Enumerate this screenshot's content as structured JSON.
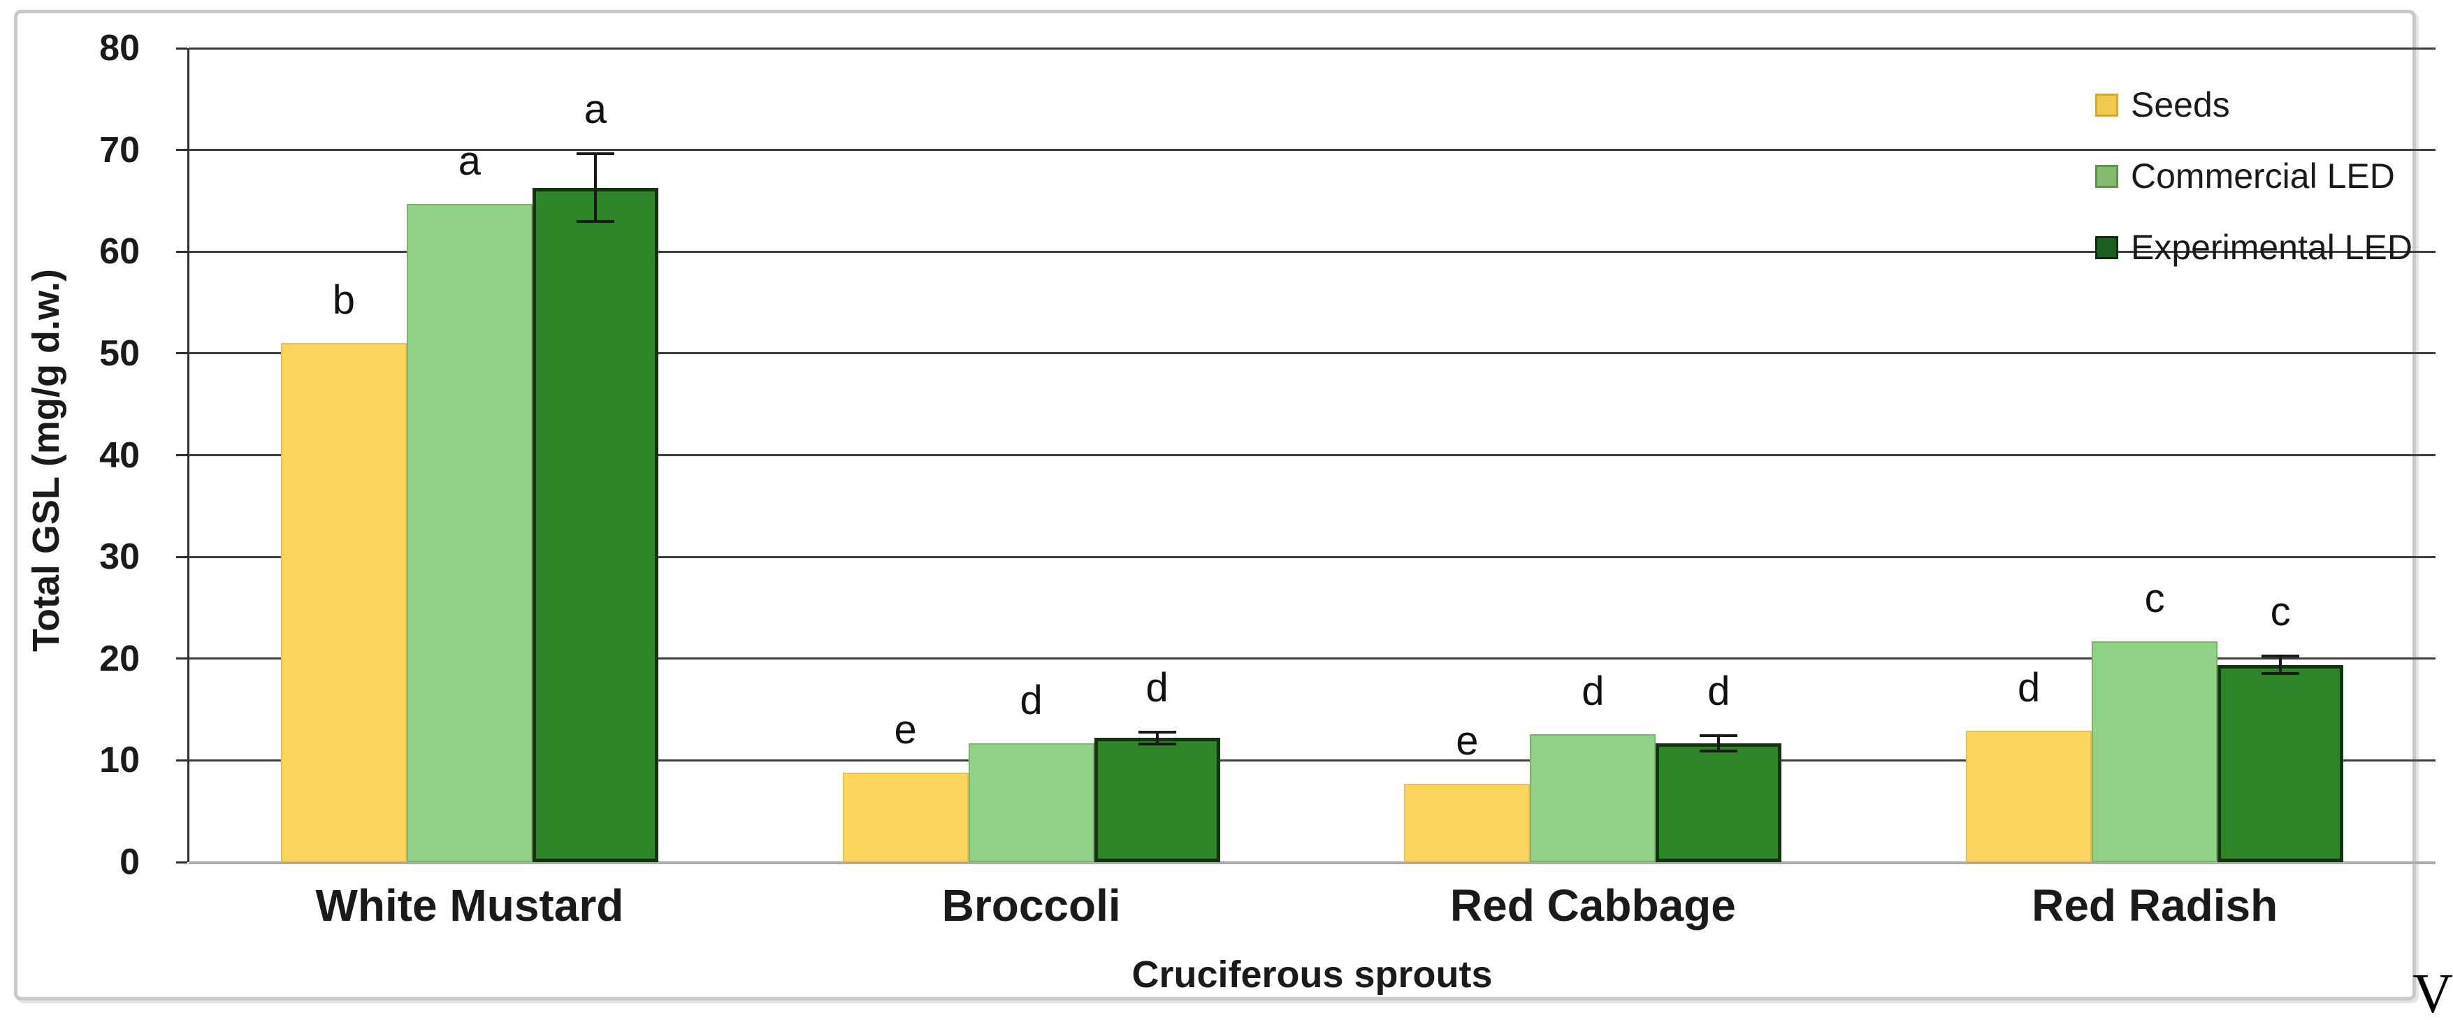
{
  "chart_data": {
    "type": "bar",
    "title": "",
    "xlabel": "Cruciferous sprouts",
    "ylabel": "Total GSL (mg/g d.w.)",
    "ylim": [
      0,
      80
    ],
    "ytick_step": 10,
    "yticks": [
      0,
      10,
      20,
      30,
      40,
      50,
      60,
      70,
      80
    ],
    "grid": true,
    "legend_position": "top-right",
    "categories": [
      "White Mustard",
      "Broccoli",
      "Red Cabbage",
      "Red Radish"
    ],
    "series": [
      {
        "name": "Seeds",
        "color": "#FDD75D",
        "border_color": "#EDBE4D",
        "legend_color": "#F2C94E",
        "legend_border": "#D9A928",
        "values": [
          51.0,
          8.8,
          7.7,
          12.9
        ],
        "letters": [
          "b",
          "e",
          "e",
          "d"
        ],
        "errors": [
          null,
          null,
          null,
          null
        ]
      },
      {
        "name": "Commercial LED",
        "color": "#92D288",
        "border_color": "#79B56B",
        "legend_color": "#85BA70",
        "legend_border": "#5C944C",
        "values": [
          64.7,
          11.7,
          12.6,
          21.7
        ],
        "letters": [
          "a",
          "d",
          "d",
          "c"
        ],
        "errors": [
          null,
          null,
          null,
          null
        ]
      },
      {
        "name": "Experimental LED",
        "color": "#2E8527",
        "border_color": "#143310",
        "legend_color": "#1A5E20",
        "legend_border": "#0E2B12",
        "values": [
          66.3,
          12.2,
          11.7,
          19.4
        ],
        "letters": [
          "a",
          "d",
          "d",
          "c"
        ],
        "errors": [
          3.5,
          0.7,
          0.9,
          1.0
        ]
      }
    ],
    "colors": {
      "gridline": "#3f3f3f",
      "baseline": "#ababab",
      "axis": "#2f2f2f",
      "frame": "#c9c9c9",
      "error_bar": "#1a1a1a"
    }
  },
  "corner_letter": "V"
}
